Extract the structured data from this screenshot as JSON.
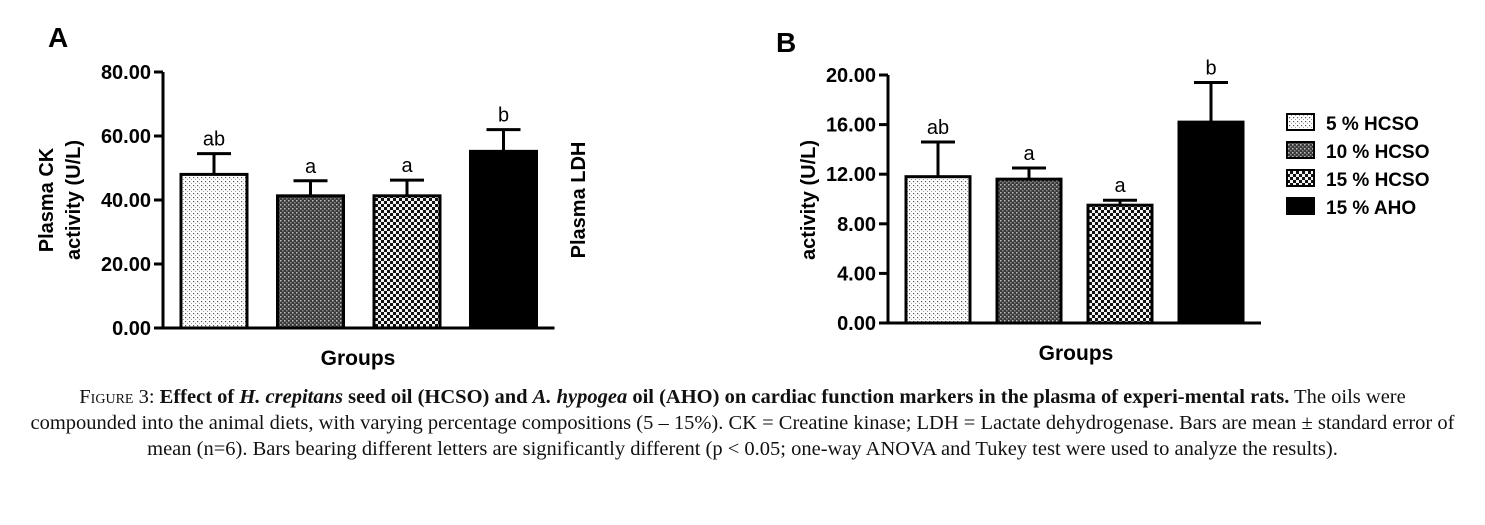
{
  "chart_data": [
    {
      "panel_label": "A",
      "type": "bar",
      "categories": [
        "5 % HCSO",
        "10 % HCSO",
        "15 % HCSO",
        "15 % AHO"
      ],
      "values": [
        48.0,
        41.3,
        41.3,
        55.2
      ],
      "errors": [
        6.5,
        4.7,
        4.9,
        6.8
      ],
      "letters": [
        "ab",
        "a",
        "a",
        "b"
      ],
      "ylabel_line1": "Plasma CK",
      "ylabel_line2": "activity (U/L)",
      "xlabel": "Groups",
      "ylim": [
        0,
        80
      ],
      "yticks": [
        "0.00",
        "20.00",
        "40.00",
        "60.00",
        "80.00"
      ],
      "ytick_values": [
        0,
        20,
        40,
        60,
        80
      ]
    },
    {
      "panel_label": "B",
      "type": "bar",
      "categories": [
        "5 % HCSO",
        "10 % HCSO",
        "15 % HCSO",
        "15 % AHO"
      ],
      "values": [
        11.8,
        11.6,
        9.5,
        16.2
      ],
      "errors": [
        2.8,
        0.9,
        0.4,
        3.2
      ],
      "letters": [
        "ab",
        "a",
        "a",
        "b"
      ],
      "ylabel_line1": "Plasma LDH",
      "ylabel_line2": "activity (U/L)",
      "xlabel": "Groups",
      "ylim": [
        0,
        20
      ],
      "yticks": [
        "0.00",
        "4.00",
        "8.00",
        "12.00",
        "16.00",
        "20.00"
      ],
      "ytick_values": [
        0,
        4,
        8,
        12,
        16,
        20
      ]
    }
  ],
  "legend": {
    "placement": "right",
    "entries": [
      {
        "label": "5 % HCSO",
        "pattern": "fine-dots"
      },
      {
        "label": "10 % HCSO",
        "pattern": "dense-crosshatch"
      },
      {
        "label": "15 % HCSO",
        "pattern": "checker"
      },
      {
        "label": "15 % AHO",
        "pattern": "solid-black"
      }
    ]
  },
  "caption": {
    "figure_word": "Figure",
    "figure_number": "3:",
    "bold_1": "Effect of ",
    "bold_italic_1": "H. crepitans",
    "bold_2": " seed oil (HCSO) and ",
    "bold_italic_2": "A. hypogea",
    "bold_3": " oil (AHO) on cardiac function markers in the plasma of experi-mental rats.",
    "text": " The oils were compounded into the animal diets, with varying percentage compositions (5 – 15%). CK = Creatine kinase; LDH = Lactate dehydrogenase. Bars are mean ± standard error of mean (n=6). Bars bearing different letters are significantly different (p < 0.05; one-way ANOVA and Tukey test were used to analyze the results)."
  }
}
